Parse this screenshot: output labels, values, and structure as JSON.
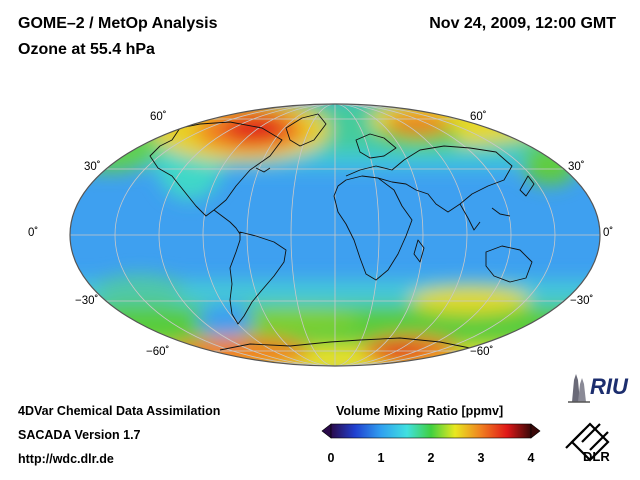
{
  "header": {
    "title": "GOME–2 / MetOp Analysis",
    "subtitle": "Ozone at 55.4 hPa",
    "date": "Nov 24, 2009, 12:00 GMT"
  },
  "map": {
    "projection": "Mollweide",
    "lat_labels": {
      "n60": "60˚",
      "n30": "30˚",
      "eq": "0˚",
      "s30": "−30˚",
      "s60": "−60˚"
    }
  },
  "colorbar": {
    "title": "Volume Mixing Ratio [ppmv]",
    "ticks": [
      "0",
      "1",
      "2",
      "3",
      "4"
    ],
    "range": [
      0,
      4
    ]
  },
  "footer": {
    "line1": "4DVar Chemical Data Assimilation",
    "line2": "SACADA Version 1.7",
    "line3": "http://wdc.dlr.de"
  },
  "logos": {
    "riu": "RIU",
    "dlr": "DLR"
  },
  "colors": {
    "blue": "#3ea0f0",
    "cyan": "#40d8e0",
    "green": "#4ccc3c",
    "yellow": "#f0e020",
    "orange": "#f08020",
    "red": "#e01c1c"
  }
}
